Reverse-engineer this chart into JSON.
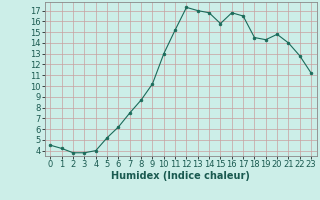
{
  "x": [
    0,
    1,
    2,
    3,
    4,
    5,
    6,
    7,
    8,
    9,
    10,
    11,
    12,
    13,
    14,
    15,
    16,
    17,
    18,
    19,
    20,
    21,
    22,
    23
  ],
  "y": [
    4.5,
    4.2,
    3.8,
    3.8,
    4.0,
    5.2,
    6.2,
    7.5,
    8.7,
    10.2,
    13.0,
    15.2,
    17.3,
    17.0,
    16.8,
    15.8,
    16.8,
    16.5,
    14.5,
    14.3,
    14.8,
    14.0,
    12.8,
    11.2
  ],
  "xlabel": "Humidex (Indice chaleur)",
  "ylim": [
    3.5,
    17.8
  ],
  "xlim": [
    -0.5,
    23.5
  ],
  "yticks": [
    4,
    5,
    6,
    7,
    8,
    9,
    10,
    11,
    12,
    13,
    14,
    15,
    16,
    17
  ],
  "xticks": [
    0,
    1,
    2,
    3,
    4,
    5,
    6,
    7,
    8,
    9,
    10,
    11,
    12,
    13,
    14,
    15,
    16,
    17,
    18,
    19,
    20,
    21,
    22,
    23
  ],
  "line_color": "#1a6b5a",
  "marker_color": "#1a6b5a",
  "bg_color": "#cceee8",
  "grid_color": "#bbbbbb",
  "xlabel_fontsize": 7,
  "tick_fontsize": 6
}
